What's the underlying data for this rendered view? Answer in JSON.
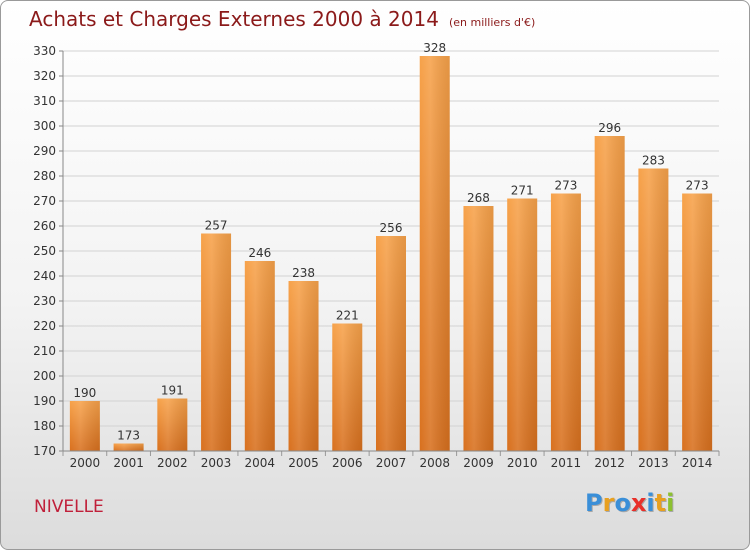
{
  "title": "Achats et Charges Externes 2000 à 2014",
  "unit": "(en milliers d'€)",
  "commune": "NIVELLE",
  "logo": {
    "letters": [
      "P",
      "r",
      "o",
      "x",
      "i",
      "t",
      "i"
    ],
    "colors": [
      "#3a8fd8",
      "#e8a020",
      "#3a8fd8",
      "#e8302a",
      "#3a8fd8",
      "#e8a020",
      "#8cc030"
    ]
  },
  "colors": {
    "bar": "#f0943a",
    "title": "#8b1a1a",
    "commune": "#c0203a"
  },
  "chart_data": {
    "type": "bar",
    "categories": [
      "2000",
      "2001",
      "2002",
      "2003",
      "2004",
      "2005",
      "2006",
      "2007",
      "2008",
      "2009",
      "2010",
      "2011",
      "2012",
      "2013",
      "2014"
    ],
    "values": [
      190,
      173,
      191,
      257,
      246,
      238,
      221,
      256,
      328,
      268,
      271,
      273,
      296,
      283,
      273
    ],
    "ylim": [
      170,
      330
    ],
    "yticks": [
      170,
      180,
      190,
      200,
      210,
      220,
      230,
      240,
      250,
      260,
      270,
      280,
      290,
      300,
      310,
      320,
      330
    ],
    "grid": true,
    "data_labels": true
  }
}
